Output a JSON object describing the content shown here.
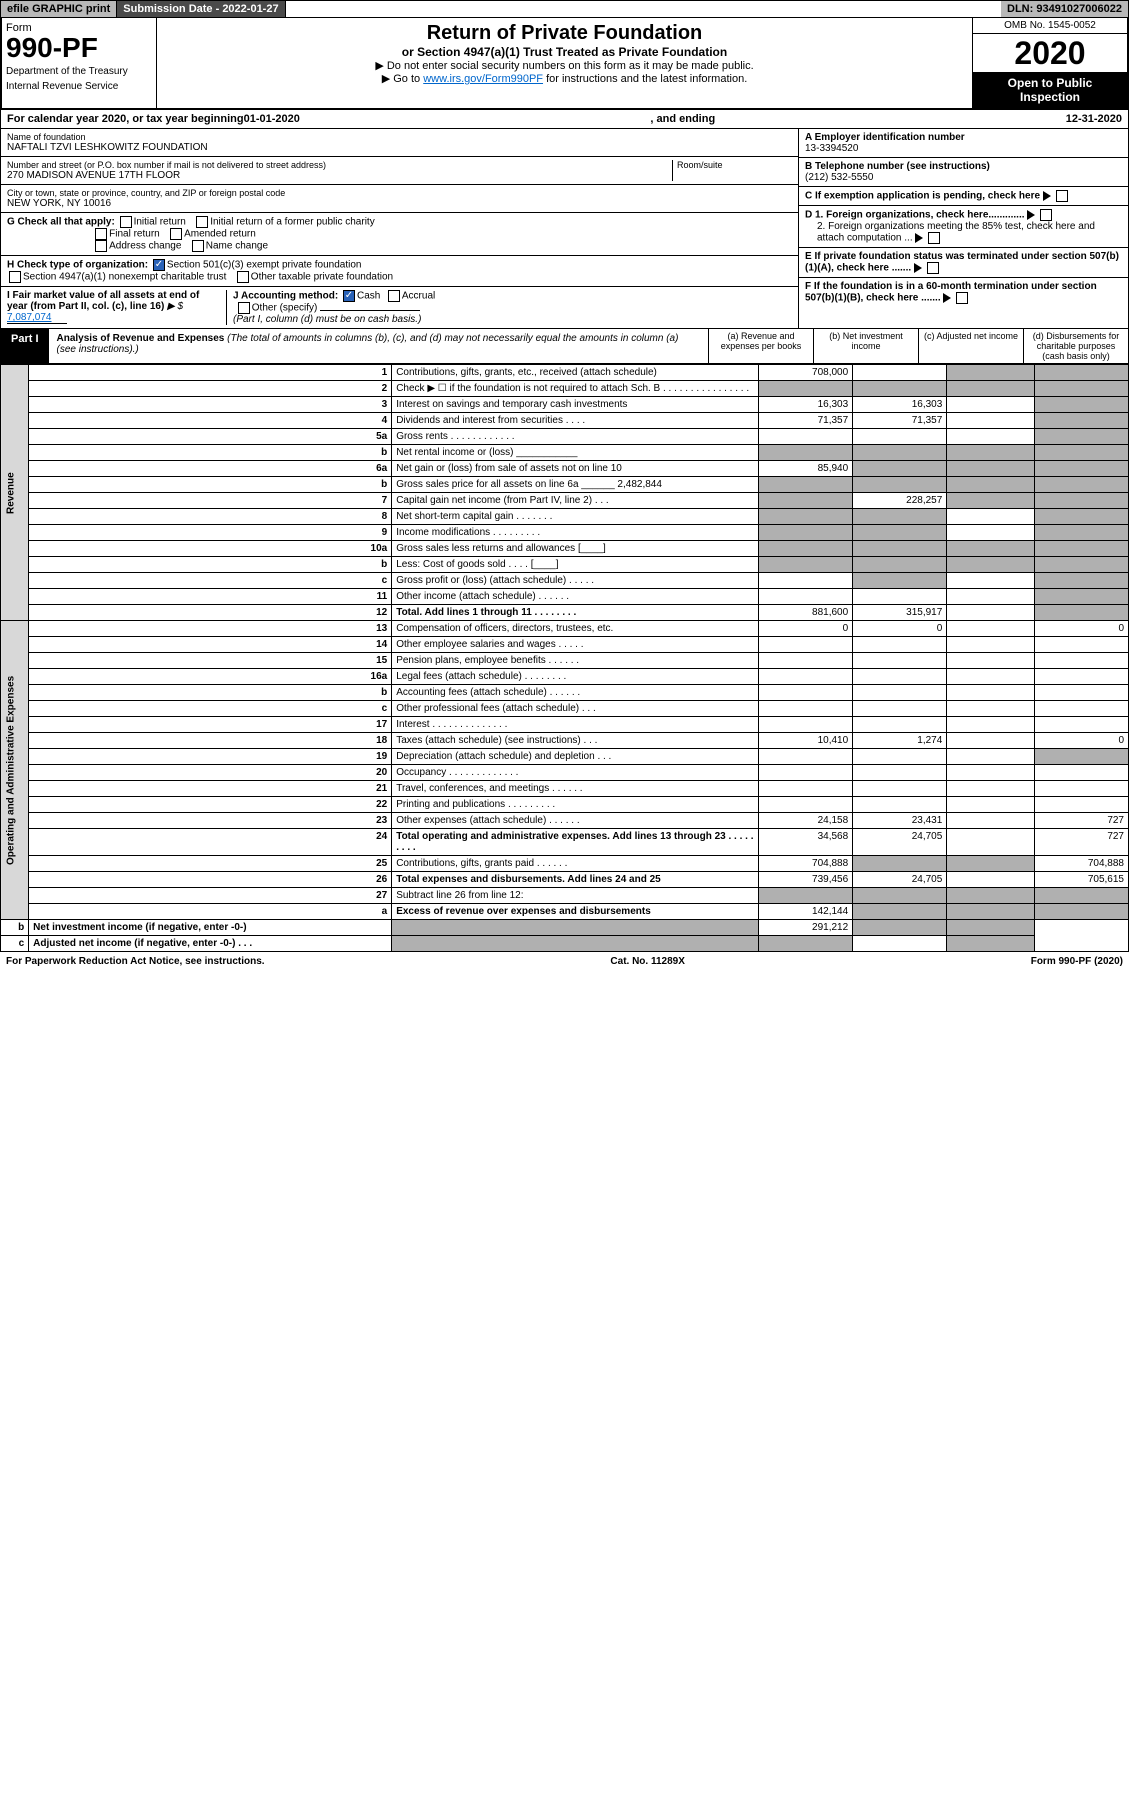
{
  "top": {
    "efile": "efile GRAPHIC print",
    "submission": "Submission Date - 2022-01-27",
    "dln": "DLN: 93491027006022"
  },
  "header": {
    "form": "Form",
    "form_num": "990-PF",
    "dept1": "Department of the Treasury",
    "dept2": "Internal Revenue Service",
    "title": "Return of Private Foundation",
    "subtitle": "or Section 4947(a)(1) Trust Treated as Private Foundation",
    "instr1": "▶ Do not enter social security numbers on this form as it may be made public.",
    "instr2_pre": "▶ Go to ",
    "instr2_link": "www.irs.gov/Form990PF",
    "instr2_post": " for instructions and the latest information.",
    "omb": "OMB No. 1545-0052",
    "year": "2020",
    "open": "Open to Public Inspection"
  },
  "cal": {
    "pre": "For calendar year 2020, or tax year beginning ",
    "begin": "01-01-2020",
    "mid": ", and ending ",
    "end": "12-31-2020"
  },
  "info": {
    "name_label": "Name of foundation",
    "name": "NAFTALI TZVI LESHKOWITZ FOUNDATION",
    "addr_label": "Number and street (or P.O. box number if mail is not delivered to street address)",
    "addr": "270 MADISON AVENUE 17TH FLOOR",
    "room_label": "Room/suite",
    "city_label": "City or town, state or province, country, and ZIP or foreign postal code",
    "city": "NEW YORK, NY  10016",
    "ein_label": "A Employer identification number",
    "ein": "13-3394520",
    "tel_label": "B Telephone number (see instructions)",
    "tel": "(212) 532-5550",
    "c": "C If exemption application is pending, check here",
    "d1": "D 1. Foreign organizations, check here.............",
    "d2": "2. Foreign organizations meeting the 85% test, check here and attach computation ...",
    "e": "E If private foundation status was terminated under section 507(b)(1)(A), check here .......",
    "f": "F If the foundation is in a 60-month termination under section 507(b)(1)(B), check here .......",
    "g_label": "G Check all that apply:",
    "g_opts": [
      "Initial return",
      "Initial return of a former public charity",
      "Final return",
      "Amended return",
      "Address change",
      "Name change"
    ],
    "h_label": "H Check type of organization:",
    "h1": "Section 501(c)(3) exempt private foundation",
    "h2": "Section 4947(a)(1) nonexempt charitable trust",
    "h3": "Other taxable private foundation",
    "i_label": "I Fair market value of all assets at end of year (from Part II, col. (c), line 16)",
    "i_val": "7,087,074",
    "j_label": "J Accounting method:",
    "j1": "Cash",
    "j2": "Accrual",
    "j3": "Other (specify)",
    "j_note": "(Part I, column (d) must be on cash basis.)"
  },
  "part1": {
    "tab": "Part I",
    "title": "Analysis of Revenue and Expenses",
    "note": " (The total of amounts in columns (b), (c), and (d) may not necessarily equal the amounts in column (a) (see instructions).)",
    "col_a": "(a) Revenue and expenses per books",
    "col_b": "(b) Net investment income",
    "col_c": "(c) Adjusted net income",
    "col_d": "(d) Disbursements for charitable purposes (cash basis only)"
  },
  "side": {
    "revenue": "Revenue",
    "expenses": "Operating and Administrative Expenses"
  },
  "rows": [
    {
      "n": "1",
      "d": "Contributions, gifts, grants, etc., received (attach schedule)",
      "a": "708,000",
      "b": "",
      "c": "grey",
      "dd": "grey"
    },
    {
      "n": "2",
      "d": "Check ▶ ☐ if the foundation is not required to attach Sch. B   .  .  .  .  .  .  .  .  .  .  .  .  .  .  .  .",
      "a": "grey",
      "b": "grey",
      "c": "grey",
      "dd": "grey"
    },
    {
      "n": "3",
      "d": "Interest on savings and temporary cash investments",
      "a": "16,303",
      "b": "16,303",
      "c": "",
      "dd": "grey"
    },
    {
      "n": "4",
      "d": "Dividends and interest from securities   .   .   .   .",
      "a": "71,357",
      "b": "71,357",
      "c": "",
      "dd": "grey"
    },
    {
      "n": "5a",
      "d": "Gross rents   .   .   .   .   .   .   .   .   .   .   .   .",
      "a": "",
      "b": "",
      "c": "",
      "dd": "grey"
    },
    {
      "n": "b",
      "d": "Net rental income or (loss)  ___________",
      "a": "grey",
      "b": "grey",
      "c": "grey",
      "dd": "grey"
    },
    {
      "n": "6a",
      "d": "Net gain or (loss) from sale of assets not on line 10",
      "a": "85,940",
      "b": "grey",
      "c": "grey",
      "dd": "grey"
    },
    {
      "n": "b",
      "d": "Gross sales price for all assets on line 6a ______ 2,482,844",
      "a": "grey",
      "b": "grey",
      "c": "grey",
      "dd": "grey"
    },
    {
      "n": "7",
      "d": "Capital gain net income (from Part IV, line 2)   .   .   .",
      "a": "grey",
      "b": "228,257",
      "c": "grey",
      "dd": "grey"
    },
    {
      "n": "8",
      "d": "Net short-term capital gain   .   .   .   .   .   .   .",
      "a": "grey",
      "b": "grey",
      "c": "",
      "dd": "grey"
    },
    {
      "n": "9",
      "d": "Income modifications   .   .   .   .   .   .   .   .   .",
      "a": "grey",
      "b": "grey",
      "c": "",
      "dd": "grey"
    },
    {
      "n": "10a",
      "d": "Gross sales less returns and allowances  [____]",
      "a": "grey",
      "b": "grey",
      "c": "grey",
      "dd": "grey"
    },
    {
      "n": "b",
      "d": "Less: Cost of goods sold   .   .   .   .   [____]",
      "a": "grey",
      "b": "grey",
      "c": "grey",
      "dd": "grey"
    },
    {
      "n": "c",
      "d": "Gross profit or (loss) (attach schedule)   .   .   .   .   .",
      "a": "",
      "b": "grey",
      "c": "",
      "dd": "grey"
    },
    {
      "n": "11",
      "d": "Other income (attach schedule)   .   .   .   .   .   .",
      "a": "",
      "b": "",
      "c": "",
      "dd": "grey"
    },
    {
      "n": "12",
      "d": "Total. Add lines 1 through 11   .   .   .   .   .   .   .   .",
      "a": "881,600",
      "b": "315,917",
      "c": "",
      "dd": "grey",
      "bold": true
    },
    {
      "n": "13",
      "d": "Compensation of officers, directors, trustees, etc.",
      "a": "0",
      "b": "0",
      "c": "",
      "dd": "0"
    },
    {
      "n": "14",
      "d": "Other employee salaries and wages   .   .   .   .   .",
      "a": "",
      "b": "",
      "c": "",
      "dd": ""
    },
    {
      "n": "15",
      "d": "Pension plans, employee benefits   .   .   .   .   .   .",
      "a": "",
      "b": "",
      "c": "",
      "dd": ""
    },
    {
      "n": "16a",
      "d": "Legal fees (attach schedule)   .   .   .   .   .   .   .   .",
      "a": "",
      "b": "",
      "c": "",
      "dd": ""
    },
    {
      "n": "b",
      "d": "Accounting fees (attach schedule)   .   .   .   .   .   .",
      "a": "",
      "b": "",
      "c": "",
      "dd": ""
    },
    {
      "n": "c",
      "d": "Other professional fees (attach schedule)   .   .   .",
      "a": "",
      "b": "",
      "c": "",
      "dd": ""
    },
    {
      "n": "17",
      "d": "Interest   .   .   .   .   .   .   .   .   .   .   .   .   .   .",
      "a": "",
      "b": "",
      "c": "",
      "dd": ""
    },
    {
      "n": "18",
      "d": "Taxes (attach schedule) (see instructions)   .   .   .",
      "a": "10,410",
      "b": "1,274",
      "c": "",
      "dd": "0"
    },
    {
      "n": "19",
      "d": "Depreciation (attach schedule) and depletion   .   .   .",
      "a": "",
      "b": "",
      "c": "",
      "dd": "grey"
    },
    {
      "n": "20",
      "d": "Occupancy   .   .   .   .   .   .   .   .   .   .   .   .   .",
      "a": "",
      "b": "",
      "c": "",
      "dd": ""
    },
    {
      "n": "21",
      "d": "Travel, conferences, and meetings   .   .   .   .   .   .",
      "a": "",
      "b": "",
      "c": "",
      "dd": ""
    },
    {
      "n": "22",
      "d": "Printing and publications   .   .   .   .   .   .   .   .   .",
      "a": "",
      "b": "",
      "c": "",
      "dd": ""
    },
    {
      "n": "23",
      "d": "Other expenses (attach schedule)   .   .   .   .   .   .",
      "a": "24,158",
      "b": "23,431",
      "c": "",
      "dd": "727"
    },
    {
      "n": "24",
      "d": "Total operating and administrative expenses. Add lines 13 through 23   .   .   .   .   .   .   .   .   .",
      "a": "34,568",
      "b": "24,705",
      "c": "",
      "dd": "727",
      "bold": true
    },
    {
      "n": "25",
      "d": "Contributions, gifts, grants paid   .   .   .   .   .   .",
      "a": "704,888",
      "b": "grey",
      "c": "grey",
      "dd": "704,888"
    },
    {
      "n": "26",
      "d": "Total expenses and disbursements. Add lines 24 and 25",
      "a": "739,456",
      "b": "24,705",
      "c": "",
      "dd": "705,615",
      "bold": true
    },
    {
      "n": "27",
      "d": "Subtract line 26 from line 12:",
      "a": "grey",
      "b": "grey",
      "c": "grey",
      "dd": "grey"
    },
    {
      "n": "a",
      "d": "Excess of revenue over expenses and disbursements",
      "a": "142,144",
      "b": "grey",
      "c": "grey",
      "dd": "grey",
      "bold": true
    },
    {
      "n": "b",
      "d": "Net investment income (if negative, enter -0-)",
      "a": "grey",
      "b": "291,212",
      "c": "grey",
      "dd": "grey",
      "bold": true
    },
    {
      "n": "c",
      "d": "Adjusted net income (if negative, enter -0-)   .   .   .",
      "a": "grey",
      "b": "grey",
      "c": "",
      "dd": "grey",
      "bold": true
    }
  ],
  "footer": {
    "left": "For Paperwork Reduction Act Notice, see instructions.",
    "mid": "Cat. No. 11289X",
    "right": "Form 990-PF (2020)"
  }
}
